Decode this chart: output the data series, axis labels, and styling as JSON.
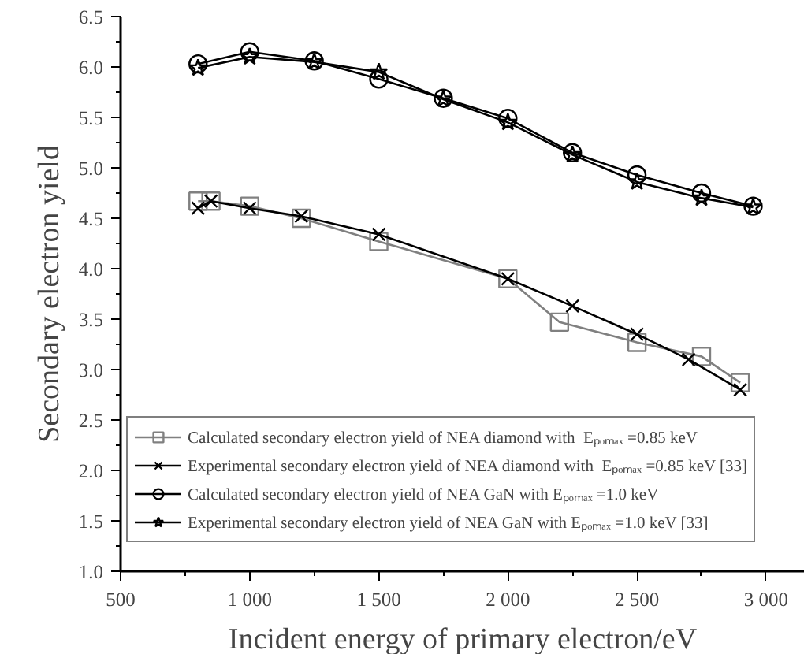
{
  "chart_data": {
    "type": "line",
    "xlabel": "Incident energy of primary electron/eV",
    "ylabel": "Secondary electron yield",
    "xlim": [
      500,
      3150
    ],
    "ylim": [
      1.0,
      6.5
    ],
    "xticks": [
      500,
      {
        "value": 750,
        "label": null
      },
      {
        "value": 1000,
        "label": "1 000"
      },
      {
        "value": 1250,
        "label": null
      },
      {
        "value": 1500,
        "label": "1 500"
      },
      {
        "value": 1750,
        "label": null
      },
      {
        "value": 2000,
        "label": "2 000"
      },
      {
        "value": 2250,
        "label": null
      },
      {
        "value": 2500,
        "label": "2 500"
      },
      {
        "value": 2750,
        "label": null
      },
      {
        "value": 3000,
        "label": "3 000"
      }
    ],
    "yticks": [
      {
        "value": 1.0,
        "label": "1.0"
      },
      {
        "value": 1.25,
        "label": null
      },
      1.5,
      {
        "value": 1.75,
        "label": null
      },
      {
        "value": 2.0,
        "label": "2.0"
      },
      {
        "value": 2.25,
        "label": null
      },
      2.5,
      {
        "value": 2.75,
        "label": null
      },
      {
        "value": 3.0,
        "label": "3.0"
      },
      {
        "value": 3.25,
        "label": null
      },
      3.5,
      {
        "value": 3.75,
        "label": null
      },
      {
        "value": 4.0,
        "label": "4.0"
      },
      {
        "value": 4.25,
        "label": null
      },
      4.5,
      {
        "value": 4.75,
        "label": null
      },
      {
        "value": 5.0,
        "label": "5.0"
      },
      {
        "value": 5.25,
        "label": null
      },
      5.5,
      {
        "value": 5.75,
        "label": null
      },
      {
        "value": 6.0,
        "label": "6.0"
      },
      {
        "value": 6.25,
        "label": null
      },
      6.5
    ],
    "grid": false,
    "legend": "bottom left",
    "line_style": "solid",
    "series": [
      {
        "name": "Calculated secondary electron yield of NEA diamond with  Eₚₒₘₐₓ =0.85 keV",
        "color": "#808080",
        "marker": "square",
        "x": [
          800,
          850,
          1000,
          1200,
          1500,
          2000,
          2200,
          2500,
          2750,
          2900
        ],
        "values": [
          4.67,
          4.67,
          4.62,
          4.5,
          4.27,
          3.9,
          3.47,
          3.27,
          3.13,
          2.87
        ]
      },
      {
        "name": "Experimental secondary electron yield of NEA diamond with  Eₚₒₘₐₓ =0.85 keV [33]",
        "color": "#000000",
        "marker": "cross",
        "x": [
          800,
          850,
          1000,
          1200,
          1500,
          2000,
          2250,
          2500,
          2700,
          2900
        ],
        "values": [
          4.6,
          4.67,
          4.6,
          4.52,
          4.34,
          3.9,
          3.63,
          3.35,
          3.1,
          2.8
        ]
      },
      {
        "name": "Calculated secondary electron yield of NEA GaN with Eₚₒₘₐₓ =1.0 keV",
        "color": "#000000",
        "marker": "circle",
        "x": [
          800,
          1000,
          1250,
          1500,
          1750,
          2000,
          2250,
          2500,
          2750,
          2950
        ],
        "values": [
          6.03,
          6.15,
          6.06,
          5.88,
          5.69,
          5.49,
          5.15,
          4.93,
          4.75,
          4.62
        ]
      },
      {
        "name": "Experimental secondary electron yield of NEA GaN with Eₚₒₘₐₓ =1.0 keV [33]",
        "color": "#000000",
        "marker": "star",
        "x": [
          800,
          1000,
          1250,
          1500,
          1750,
          2000,
          2250,
          2500,
          2750,
          2950
        ],
        "values": [
          5.99,
          6.1,
          6.05,
          5.95,
          5.68,
          5.45,
          5.13,
          4.86,
          4.7,
          4.61
        ]
      }
    ]
  }
}
